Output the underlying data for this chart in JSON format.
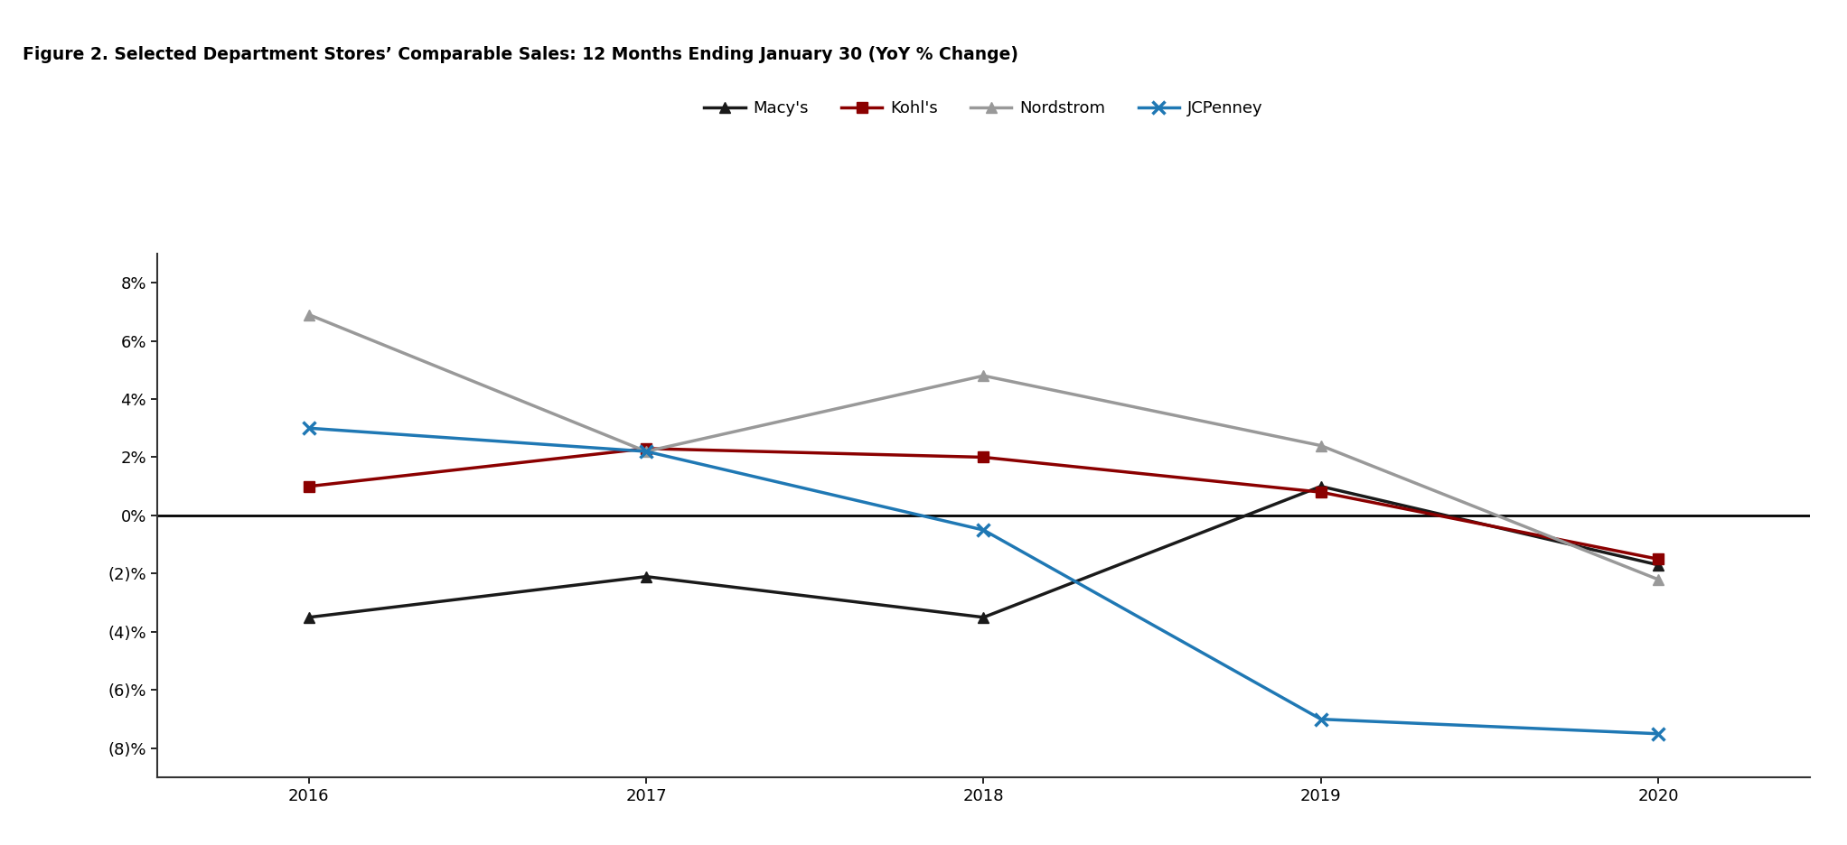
{
  "title": "Figure 2. Selected Department Stores’ Comparable Sales: 12 Months Ending January 30 (YoY % Change)",
  "years": [
    2016,
    2017,
    2018,
    2019,
    2020
  ],
  "series": {
    "Macy's": {
      "values": [
        -3.5,
        -2.1,
        -3.5,
        1.0,
        -1.7
      ],
      "color": "#1a1a1a",
      "marker": "^",
      "linewidth": 2.5,
      "markersize": 9
    },
    "Kohl's": {
      "values": [
        1.0,
        2.3,
        2.0,
        0.8,
        -1.5
      ],
      "color": "#8b0000",
      "marker": "s",
      "linewidth": 2.5,
      "markersize": 9
    },
    "Nordstrom": {
      "values": [
        6.9,
        2.2,
        4.8,
        2.4,
        -2.2
      ],
      "color": "#999999",
      "marker": "^",
      "linewidth": 2.5,
      "markersize": 9
    },
    "JCPenney": {
      "values": [
        3.0,
        2.2,
        -0.5,
        -7.0,
        -7.5
      ],
      "color": "#1f78b4",
      "marker": "x",
      "linewidth": 2.5,
      "markersize": 10,
      "markeredgewidth": 2.5
    }
  },
  "ylim": [
    -9,
    9
  ],
  "yticks": [
    -8,
    -6,
    -4,
    -2,
    0,
    2,
    4,
    6,
    8
  ],
  "ytick_labels": [
    "(8)%",
    "(6)%",
    "(4)%",
    "(2)%",
    "0%",
    "2%",
    "4%",
    "6%",
    "8%"
  ],
  "background_color": "#ffffff",
  "title_fontsize": 13.5,
  "tick_fontsize": 13,
  "legend_fontsize": 13,
  "header_bar_color": "#1a1a1a",
  "xlim": [
    2015.55,
    2020.45
  ]
}
